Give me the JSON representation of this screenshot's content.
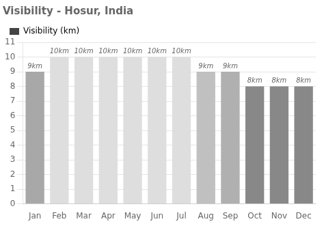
{
  "chart_data": {
    "type": "bar",
    "title": "Visibility - Hosur, India",
    "categories": [
      "Jan",
      "Feb",
      "Mar",
      "Apr",
      "May",
      "Jun",
      "Jul",
      "Aug",
      "Sep",
      "Oct",
      "Nov",
      "Dec"
    ],
    "series": [
      {
        "name": "Visibility (km)",
        "color": "#444444",
        "colors": [
          "#a8a8a8",
          "#dedede",
          "#dedede",
          "#dedede",
          "#dedede",
          "#dedede",
          "#dedede",
          "#c0c0c0",
          "#b0b0b0",
          "#888888",
          "#888888",
          "#888888"
        ],
        "values": [
          9,
          10,
          10,
          10,
          10,
          10,
          10,
          9,
          9,
          8,
          8,
          8
        ],
        "value_labels": [
          "9km",
          "10km",
          "10km",
          "10km",
          "10km",
          "10km",
          "10km",
          "9km",
          "9km",
          "8km",
          "8km",
          "8km"
        ]
      }
    ],
    "ylim": [
      0,
      11
    ],
    "yticks": [
      0,
      1,
      2,
      3,
      4,
      5,
      6,
      7,
      8,
      9,
      10,
      11
    ],
    "grid": true,
    "legend": "upper left",
    "data_labels": true
  }
}
